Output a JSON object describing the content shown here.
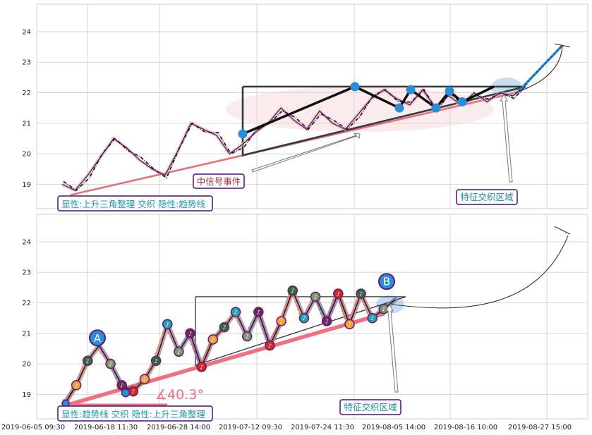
{
  "chart_data": [
    {
      "type": "line",
      "ylim": [
        18.2,
        24.9
      ],
      "yticks": [
        19,
        20,
        21,
        22,
        23,
        24
      ],
      "grid": true,
      "series": [
        {
          "values": [
            19.0,
            18.8,
            19.3,
            19.9,
            20.5,
            20.2,
            19.8,
            19.5,
            19.3,
            20.1,
            21.0,
            20.8,
            20.6,
            20.0,
            20.3,
            20.7,
            21.0,
            21.5,
            21.1,
            20.8,
            21.4,
            21.0,
            20.8,
            21.3,
            21.8,
            22.1,
            21.8,
            21.6,
            22.1,
            21.5,
            21.9,
            21.6,
            22.0,
            21.7,
            22.0,
            21.9,
            22.2
          ]
        }
      ],
      "texts": {
        "annotation_center": "中信号事件",
        "annotation_right": "特征交织区域",
        "summary": "显性:上升三角整理 交织 隐性:趋势线"
      },
      "colors": {
        "price": "#3a0a6b",
        "trend": "#e8707a",
        "pattern": "#333a40",
        "marker": "#2a8dd8",
        "label_border": "#4b0f7a",
        "label_text": "#1a9ab0",
        "center_text": "#b3263a"
      }
    },
    {
      "type": "line",
      "ylim": [
        18.2,
        24.9
      ],
      "yticks": [
        19,
        20,
        21,
        22,
        23,
        24
      ],
      "grid": true,
      "x_ticks": [
        "2019-06-05 09:30",
        "2019-06-18 11:30",
        "2019-06-28 14:00",
        "2019-07-12 09:30",
        "2019-07-24 11:30",
        "2019-08-05 14:00",
        "2019-08-16 10:00",
        "2019-08-27 15:00"
      ],
      "series": [
        {
          "values": [
            18.7,
            19.3,
            20.1,
            20.6,
            20.0,
            19.3,
            19.1,
            19.5,
            20.1,
            21.3,
            20.4,
            21.0,
            19.9,
            20.8,
            21.2,
            21.7,
            20.9,
            21.7,
            20.6,
            21.4,
            22.4,
            21.5,
            22.2,
            21.4,
            22.3,
            21.3,
            22.3,
            21.5,
            21.8,
            22.1
          ]
        }
      ],
      "markers": {
        "a": "A",
        "b": "B"
      },
      "angle_label": "∡40.3°",
      "texts": {
        "annotation_right": "特征交织区域",
        "summary": "显性:趋势线 交织 隐性:上升三角整理"
      },
      "colors": {
        "price": "#e8a040",
        "trend": "#f07080",
        "pattern": "#333",
        "marker_a": "#2a8dd8",
        "angle": "#f07080"
      }
    }
  ]
}
